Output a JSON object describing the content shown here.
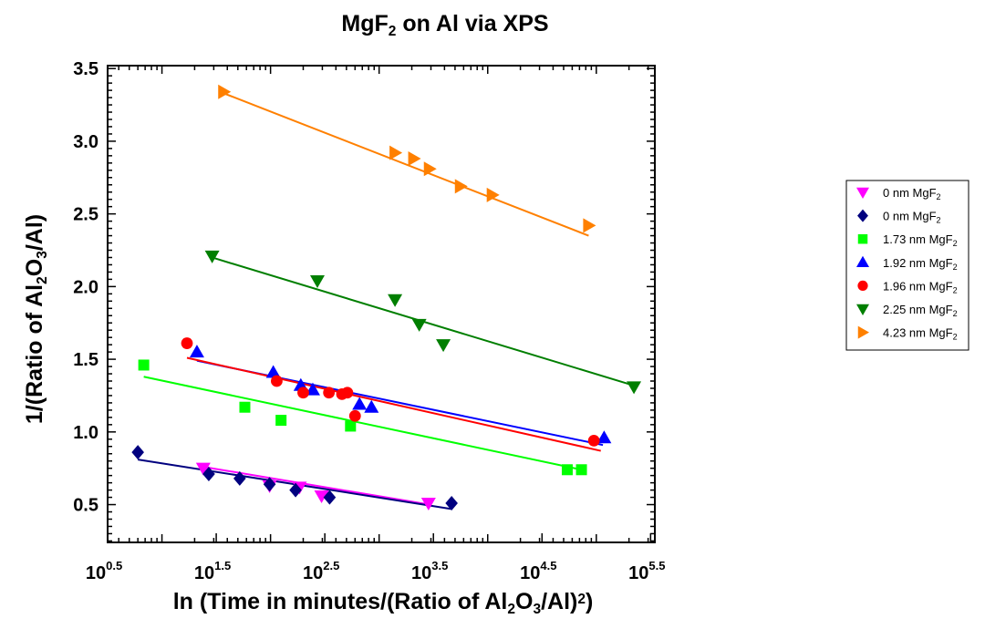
{
  "chart_data": {
    "type": "scatter",
    "title": "MgF",
    "title_sub": "2",
    "title_tail": " on Al via XPS",
    "xlabel_parts": [
      {
        "t": "ln (Time in minutes/(Ratio of Al",
        "s": ""
      },
      {
        "t": "2",
        "s": "sub"
      },
      {
        "t": "O",
        "s": ""
      },
      {
        "t": "3",
        "s": "sub"
      },
      {
        "t": "/Al)",
        "s": ""
      },
      {
        "t": "2",
        "s": "sup"
      },
      {
        "t": ")",
        "s": ""
      }
    ],
    "ylabel_parts": [
      {
        "t": "1/(Ratio of Al",
        "s": ""
      },
      {
        "t": "2",
        "s": "sub"
      },
      {
        "t": "O",
        "s": ""
      },
      {
        "t": "3",
        "s": "sub"
      },
      {
        "t": "/Al)",
        "s": ""
      }
    ],
    "x_scale": "log10",
    "xlim": [
      3.16,
      346000
    ],
    "ylim": [
      0.24,
      3.52
    ],
    "x_ticks": [
      {
        "base": "10",
        "exp": "0.5",
        "value": 3.162
      },
      {
        "base": "10",
        "exp": "1.5",
        "value": 31.62
      },
      {
        "base": "10",
        "exp": "2.5",
        "value": 316.2
      },
      {
        "base": "10",
        "exp": "3.5",
        "value": 3162
      },
      {
        "base": "10",
        "exp": "4.5",
        "value": 31623
      },
      {
        "base": "10",
        "exp": "5.5",
        "value": 316228
      }
    ],
    "y_ticks": [
      "0.5",
      "1.0",
      "1.5",
      "2.0",
      "2.5",
      "3.0",
      "3.5"
    ],
    "y_tick_values": [
      0.5,
      1.0,
      1.5,
      2.0,
      2.5,
      3.0,
      3.5
    ],
    "grid": false,
    "legend_position": "right",
    "series": [
      {
        "name": "0 nm MgF",
        "name_sub": "2",
        "color": "#ff00ff",
        "marker": "triangle-down",
        "points": [
          [
            24,
            0.75
          ],
          [
            98,
            0.63
          ],
          [
            185,
            0.62
          ],
          [
            295,
            0.56
          ],
          [
            2850,
            0.51
          ]
        ],
        "fit": [
          [
            24,
            0.76
          ],
          [
            2900,
            0.5
          ]
        ]
      },
      {
        "name": "0 nm MgF",
        "name_sub": "2",
        "color": "#00007f",
        "marker": "diamond",
        "points": [
          [
            6,
            0.86
          ],
          [
            27,
            0.71
          ],
          [
            52,
            0.68
          ],
          [
            98,
            0.64
          ],
          [
            170,
            0.6
          ],
          [
            350,
            0.55
          ],
          [
            4650,
            0.51
          ]
        ],
        "fit": [
          [
            6,
            0.81
          ],
          [
            4650,
            0.47
          ]
        ]
      },
      {
        "name": "1.73 nm MgF",
        "name_sub": "2",
        "color": "#00ff00",
        "marker": "square",
        "points": [
          [
            6.8,
            1.46
          ],
          [
            58,
            1.17
          ],
          [
            125,
            1.08
          ],
          [
            545,
            1.04
          ],
          [
            54000,
            0.74
          ],
          [
            73000,
            0.74
          ]
        ],
        "fit": [
          [
            6.8,
            1.38
          ],
          [
            73000,
            0.74
          ]
        ]
      },
      {
        "name": "1.92 nm MgF",
        "name_sub": "2",
        "color": "#0000ff",
        "marker": "triangle-up",
        "points": [
          [
            21,
            1.55
          ],
          [
            106,
            1.41
          ],
          [
            190,
            1.32
          ],
          [
            245,
            1.29
          ],
          [
            660,
            1.19
          ],
          [
            850,
            1.17
          ],
          [
            118000,
            0.96
          ]
        ],
        "fit": [
          [
            21,
            1.49
          ],
          [
            115000,
            0.91
          ]
        ]
      },
      {
        "name": "1.96 nm MgF",
        "name_sub": "2",
        "color": "#ff0000",
        "marker": "circle",
        "points": [
          [
            17,
            1.61
          ],
          [
            114,
            1.35
          ],
          [
            200,
            1.27
          ],
          [
            345,
            1.27
          ],
          [
            455,
            1.26
          ],
          [
            510,
            1.27
          ],
          [
            600,
            1.11
          ],
          [
            95000,
            0.94
          ]
        ],
        "fit": [
          [
            17,
            1.51
          ],
          [
            110000,
            0.87
          ]
        ]
      },
      {
        "name": "2.25 nm MgF",
        "name_sub": "2",
        "color": "#007f00",
        "marker": "triangle-down",
        "points": [
          [
            29,
            2.21
          ],
          [
            270,
            2.04
          ],
          [
            1400,
            1.91
          ],
          [
            2340,
            1.74
          ],
          [
            3900,
            1.6
          ],
          [
            222000,
            1.31
          ]
        ],
        "fit": [
          [
            29,
            2.2
          ],
          [
            220000,
            1.32
          ]
        ]
      },
      {
        "name": "4.23 nm MgF",
        "name_sub": "2",
        "color": "#ff8000",
        "marker": "triangle-right",
        "points": [
          [
            37,
            3.34
          ],
          [
            1400,
            2.92
          ],
          [
            2080,
            2.88
          ],
          [
            2900,
            2.81
          ],
          [
            5600,
            2.69
          ],
          [
            11000,
            2.63
          ],
          [
            85000,
            2.42
          ]
        ],
        "fit": [
          [
            37,
            3.33
          ],
          [
            85000,
            2.35
          ]
        ]
      }
    ]
  }
}
